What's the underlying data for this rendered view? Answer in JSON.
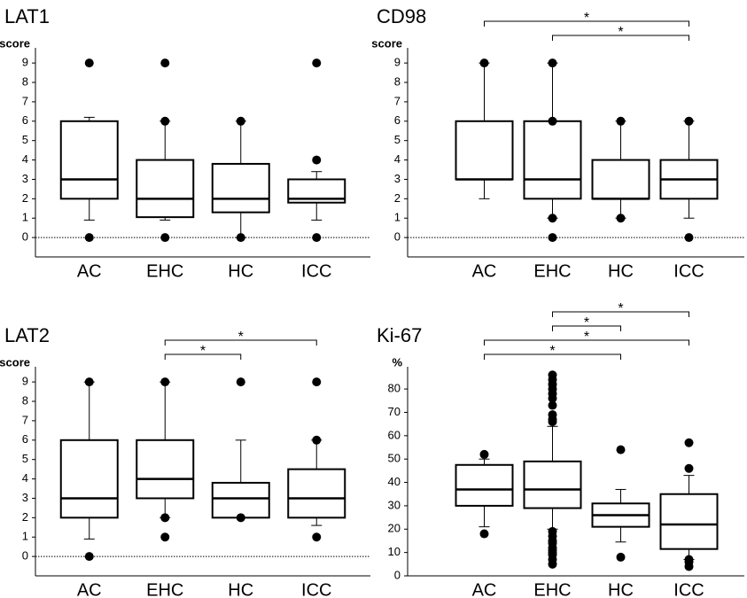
{
  "chart_data": [
    {
      "type": "box",
      "title": "LAT1",
      "ylabel": "score",
      "categories": [
        "AC",
        "EHC",
        "HC",
        "ICC"
      ],
      "ylim": [
        -1,
        9.6
      ],
      "yticks": [
        0,
        1,
        2,
        3,
        4,
        5,
        6,
        7,
        8,
        9
      ],
      "zero_line": true,
      "boxes": [
        {
          "low": 0.9,
          "q1": 2,
          "median": 3,
          "q3": 6,
          "high": 6.2,
          "outliers": [
            0,
            9
          ]
        },
        {
          "low": 0.9,
          "q1": 1.05,
          "median": 2,
          "q3": 4,
          "high": 6,
          "outliers": [
            0,
            6,
            9
          ]
        },
        {
          "low": 0,
          "q1": 1.3,
          "median": 2,
          "q3": 3.8,
          "high": 6,
          "outliers": [
            0,
            6
          ]
        },
        {
          "low": 0.9,
          "q1": 1.8,
          "median": 2,
          "q3": 3,
          "high": 3.4,
          "outliers": [
            0,
            4,
            9
          ]
        }
      ],
      "brackets": []
    },
    {
      "type": "box",
      "title": "CD98",
      "ylabel": "score",
      "categories": [
        "AC",
        "EHC",
        "HC",
        "ICC"
      ],
      "ylim": [
        -1,
        9.6
      ],
      "yticks": [
        0,
        1,
        2,
        3,
        4,
        5,
        6,
        7,
        8,
        9
      ],
      "zero_line": true,
      "boxes": [
        {
          "low": 2,
          "q1": 3,
          "median": 3,
          "q3": 6,
          "high": 9,
          "outliers": [
            9
          ]
        },
        {
          "low": 1,
          "q1": 2,
          "median": 3,
          "q3": 6,
          "high": 9,
          "outliers": [
            0,
            1,
            6,
            9
          ]
        },
        {
          "low": 1,
          "q1": 2,
          "median": 2,
          "q3": 4,
          "high": 6,
          "outliers": [
            1,
            6
          ]
        },
        {
          "low": 1,
          "q1": 2,
          "median": 3,
          "q3": 4,
          "high": 6,
          "outliers": [
            0,
            6
          ]
        }
      ],
      "brackets": [
        {
          "between": [
            "AC",
            "ICC"
          ],
          "label": "*"
        },
        {
          "between": [
            "EHC",
            "ICC"
          ],
          "label": "*"
        }
      ]
    },
    {
      "type": "box",
      "title": "LAT2",
      "ylabel": "score",
      "categories": [
        "AC",
        "EHC",
        "HC",
        "ICC"
      ],
      "ylim": [
        -1,
        9.6
      ],
      "yticks": [
        0,
        1,
        2,
        3,
        4,
        5,
        6,
        7,
        8,
        9
      ],
      "zero_line": true,
      "boxes": [
        {
          "low": 0.9,
          "q1": 2,
          "median": 3,
          "q3": 6,
          "high": 9,
          "outliers": [
            0,
            9
          ]
        },
        {
          "low": 2,
          "q1": 3,
          "median": 4,
          "q3": 6,
          "high": 9,
          "outliers": [
            1,
            2,
            9
          ]
        },
        {
          "low": 2,
          "q1": 2,
          "median": 3,
          "q3": 3.8,
          "high": 6,
          "outliers": [
            2,
            9
          ]
        },
        {
          "low": 1.6,
          "q1": 2,
          "median": 3,
          "q3": 4.5,
          "high": 6,
          "outliers": [
            1,
            6,
            9
          ]
        }
      ],
      "brackets": [
        {
          "between": [
            "EHC",
            "ICC"
          ],
          "label": "*"
        },
        {
          "between": [
            "EHC",
            "HC"
          ],
          "label": "*"
        }
      ]
    },
    {
      "type": "box",
      "title": "Ki-67",
      "ylabel": "%",
      "categories": [
        "AC",
        "EHC",
        "HC",
        "ICC"
      ],
      "ylim": [
        0,
        88
      ],
      "yticks": [
        0,
        10,
        20,
        30,
        40,
        50,
        60,
        70,
        80
      ],
      "zero_line": false,
      "boxes": [
        {
          "low": 21,
          "q1": 30,
          "median": 37,
          "q3": 47.5,
          "high": 50,
          "outliers": [
            18,
            52
          ]
        },
        {
          "low": 20,
          "q1": 29,
          "median": 37,
          "q3": 49,
          "high": 64,
          "outliers": [
            5,
            7,
            9,
            10,
            11,
            12,
            14,
            15,
            17,
            19,
            66,
            67,
            69,
            73,
            76,
            78,
            80,
            82,
            84,
            86
          ]
        },
        {
          "low": 14.5,
          "q1": 21,
          "median": 26,
          "q3": 31,
          "high": 37,
          "outliers": [
            8,
            54
          ]
        },
        {
          "low": 7,
          "q1": 11.5,
          "median": 22,
          "q3": 35,
          "high": 43,
          "outliers": [
            4,
            6,
            7,
            46,
            57
          ]
        }
      ],
      "brackets": [
        {
          "between": [
            "EHC",
            "ICC"
          ],
          "label": "*"
        },
        {
          "between": [
            "EHC",
            "HC"
          ],
          "label": "*"
        },
        {
          "between": [
            "AC",
            "ICC"
          ],
          "label": "*"
        },
        {
          "between": [
            "AC",
            "HC"
          ],
          "label": "*"
        }
      ]
    }
  ]
}
